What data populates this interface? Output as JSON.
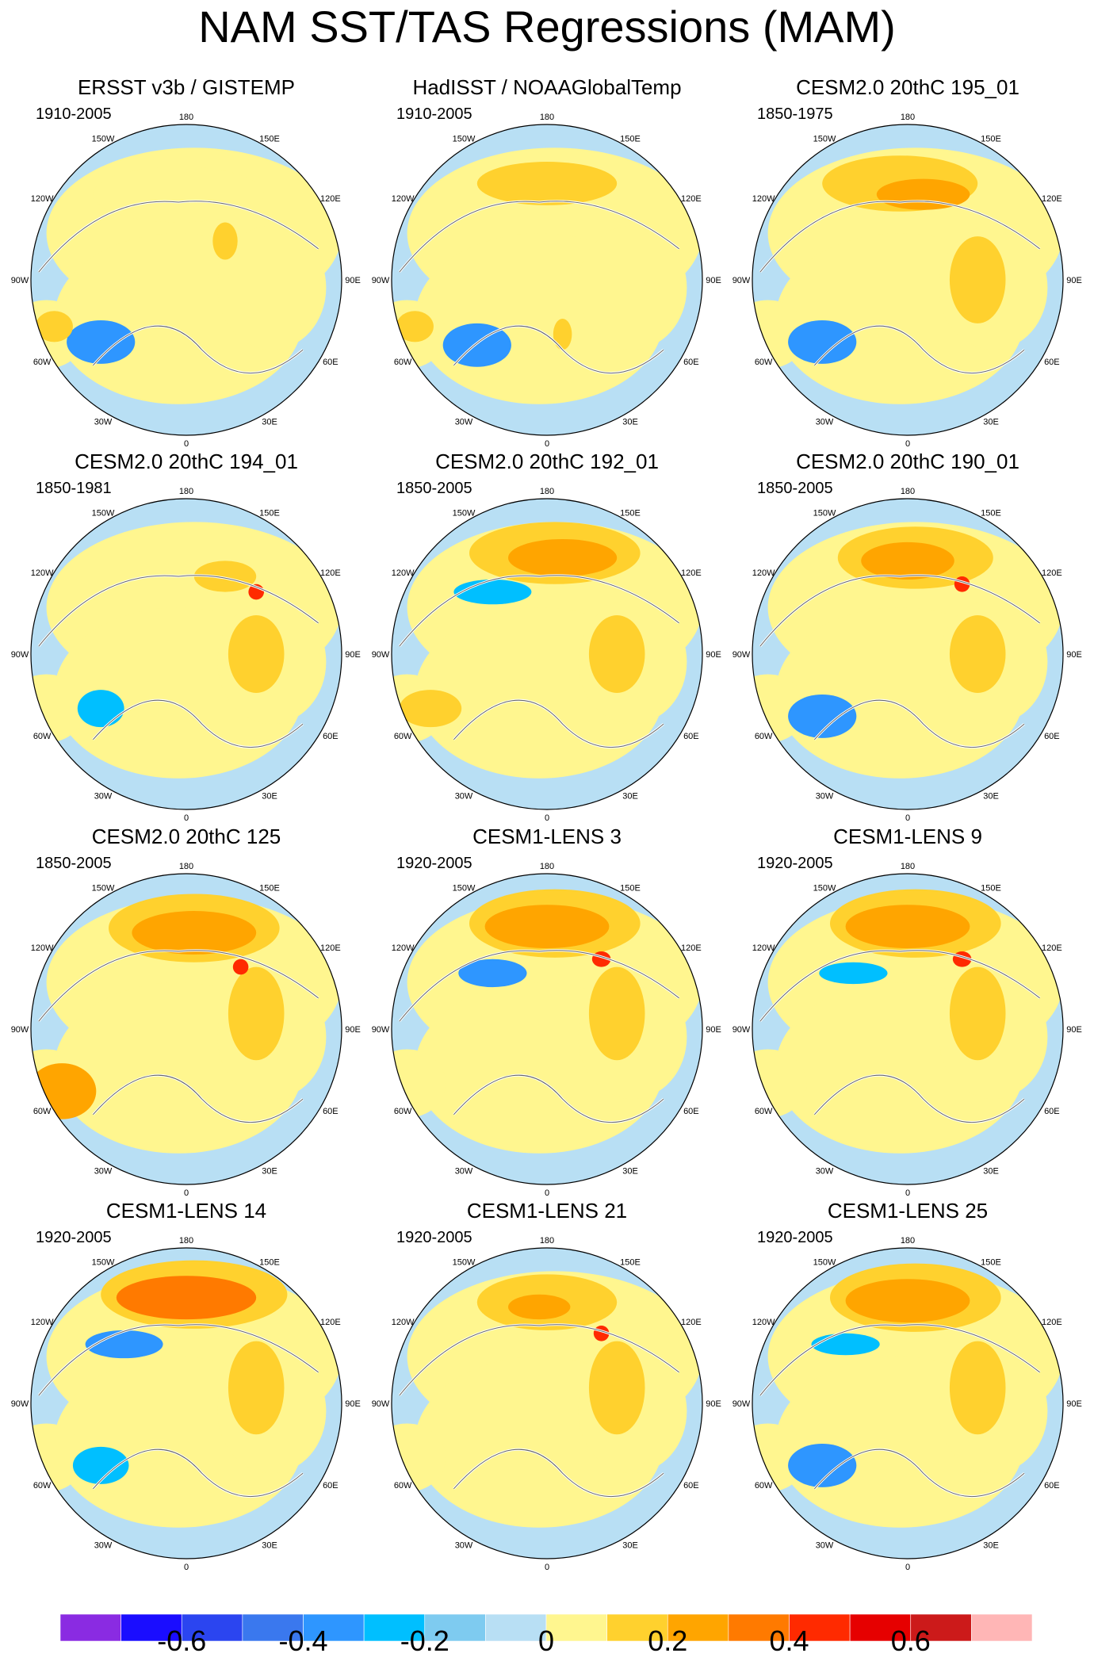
{
  "title": "NAM SST/TAS Regressions (MAM)",
  "panels": [
    {
      "title": "ERSST v3b / GISTEMP",
      "period": "1910-2005"
    },
    {
      "title": "HadISST / NOAAGlobalTemp",
      "period": "1910-2005"
    },
    {
      "title": "CESM2.0 20thC 195_01",
      "period": "1850-1975"
    },
    {
      "title": "CESM2.0 20thC 194_01",
      "period": "1850-1981"
    },
    {
      "title": "CESM2.0 20thC 192_01",
      "period": "1850-2005"
    },
    {
      "title": "CESM2.0 20thC 190_01",
      "period": "1850-2005"
    },
    {
      "title": "CESM2.0 20thC 125",
      "period": "1850-2005"
    },
    {
      "title": "CESM1-LENS 3",
      "period": "1920-2005"
    },
    {
      "title": "CESM1-LENS 9",
      "period": "1920-2005"
    },
    {
      "title": "CESM1-LENS 14",
      "period": "1920-2005"
    },
    {
      "title": "CESM1-LENS 21",
      "period": "1920-2005"
    },
    {
      "title": "CESM1-LENS 25",
      "period": "1920-2005"
    }
  ],
  "longitude_labels": [
    "180",
    "150E",
    "120E",
    "90E",
    "60E",
    "30E",
    "0",
    "30W",
    "60W",
    "90W",
    "120W",
    "150W"
  ],
  "colorbar": {
    "colors": [
      "#8a2be2",
      "#1a0dff",
      "#2b45f0",
      "#3a78ee",
      "#2e96ff",
      "#00bfff",
      "#7ecbf0",
      "#b8dff4",
      "#fff68f",
      "#ffd12e",
      "#ffa500",
      "#ff7a00",
      "#ff2a00",
      "#e60000",
      "#cc1a1a",
      "#ffb6b6"
    ],
    "ticks": [
      "-0.6",
      "-0.4",
      "-0.2",
      "0",
      "0.2",
      "0.4",
      "0.6"
    ]
  }
}
